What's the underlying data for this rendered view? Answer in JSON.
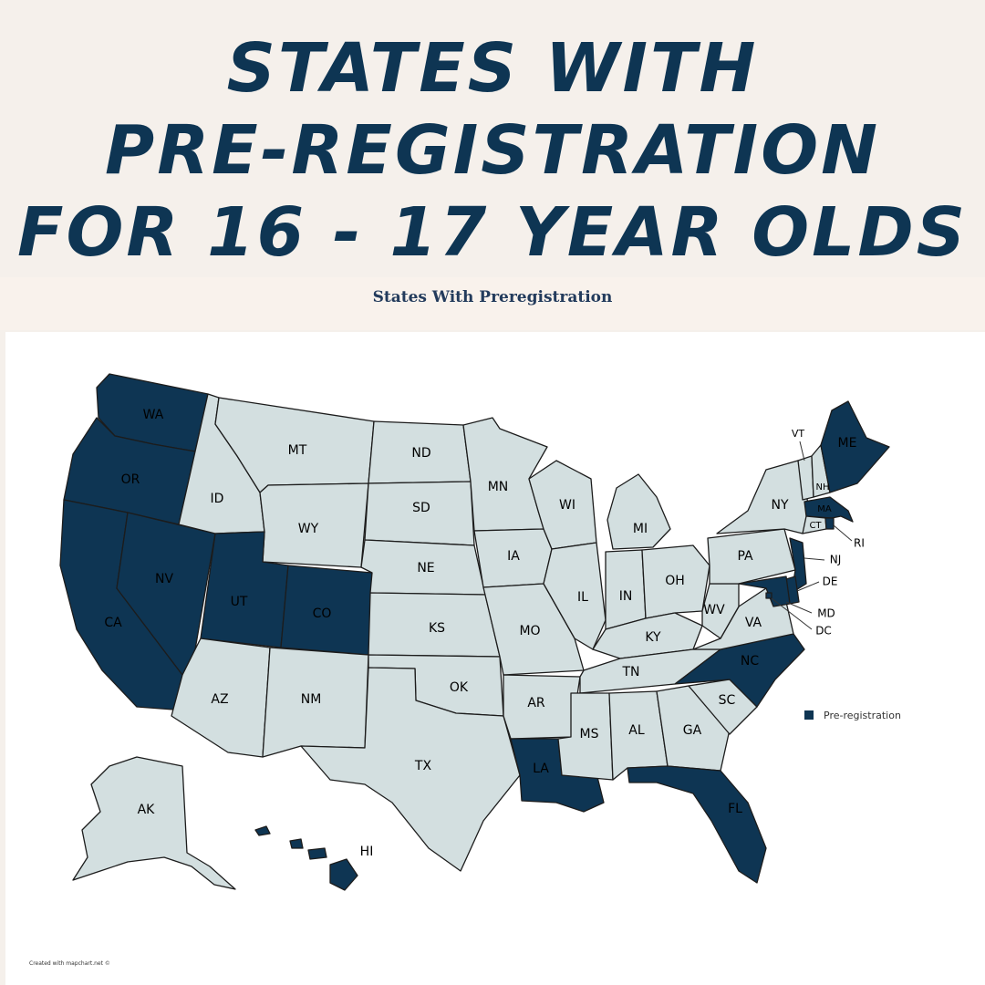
{
  "headline": {
    "line1": "STATES WITH",
    "line2": "PRE-REGISTRATION",
    "line3": "FOR 16 - 17 YEAR OLDS"
  },
  "map_title": "States With Preregistration",
  "legend_label": "Pre-registration",
  "credit": "Created with mapchart.net ©",
  "colors": {
    "highlight": "#0e3553",
    "base": "#d3dfe0",
    "background": "#f5f0eb"
  },
  "highlighted_states": [
    "WA",
    "OR",
    "CA",
    "NV",
    "UT",
    "CO",
    "LA",
    "FL",
    "NC",
    "MD",
    "DE",
    "NJ",
    "MA",
    "RI",
    "ME",
    "HI",
    "DC"
  ],
  "state_labels": {
    "WA": "WA",
    "OR": "OR",
    "CA": "CA",
    "NV": "NV",
    "ID": "ID",
    "MT": "MT",
    "WY": "WY",
    "UT": "UT",
    "CO": "CO",
    "AZ": "AZ",
    "NM": "NM",
    "ND": "ND",
    "SD": "SD",
    "NE": "NE",
    "KS": "KS",
    "OK": "OK",
    "TX": "TX",
    "MN": "MN",
    "IA": "IA",
    "MO": "MO",
    "AR": "AR",
    "LA": "LA",
    "WI": "WI",
    "IL": "IL",
    "MI": "MI",
    "IN": "IN",
    "OH": "OH",
    "KY": "KY",
    "TN": "TN",
    "MS": "MS",
    "AL": "AL",
    "GA": "GA",
    "FL": "FL",
    "SC": "SC",
    "NC": "NC",
    "VA": "VA",
    "WV": "WV",
    "PA": "PA",
    "NY": "NY",
    "VT": "VT",
    "NH": "NH",
    "ME": "ME",
    "MA": "MA",
    "CT": "CT",
    "RI": "RI",
    "NJ": "NJ",
    "DE": "DE",
    "MD": "MD",
    "DC": "DC",
    "AK": "AK",
    "HI": "HI"
  }
}
